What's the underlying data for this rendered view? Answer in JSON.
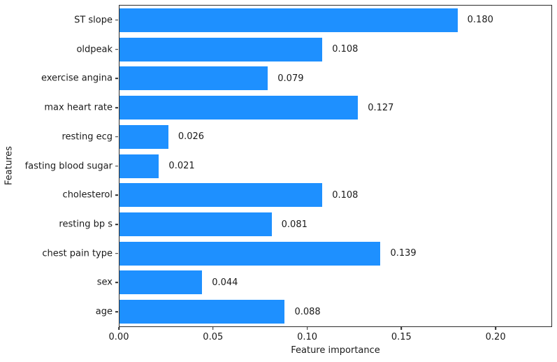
{
  "chart_data": {
    "type": "bar",
    "orientation": "horizontal",
    "title": "",
    "xlabel": "Feature importance",
    "ylabel": "Features",
    "categories_top_to_bottom": [
      "ST slope",
      "oldpeak",
      "exercise angina",
      "max heart rate",
      "resting ecg",
      "fasting blood sugar",
      "cholesterol",
      "resting bp s",
      "chest pain type",
      "sex",
      "age"
    ],
    "values": [
      0.18,
      0.108,
      0.079,
      0.127,
      0.026,
      0.021,
      0.108,
      0.081,
      0.139,
      0.044,
      0.088
    ],
    "value_labels": [
      "0.180",
      "0.108",
      "0.079",
      "0.127",
      "0.026",
      "0.021",
      "0.108",
      "0.081",
      "0.139",
      "0.044",
      "0.088"
    ],
    "x_ticks": [
      "0.00",
      "0.05",
      "0.10",
      "0.15",
      "0.20"
    ],
    "x_tick_values": [
      0.0,
      0.05,
      0.1,
      0.15,
      0.2
    ],
    "xlim": [
      0,
      0.23
    ],
    "bar_color": "#1e90ff",
    "axes_color": "#2b2b2b",
    "background_color": "#ffffff",
    "grid": false,
    "legend": null,
    "bar_height_fraction": 0.8
  }
}
